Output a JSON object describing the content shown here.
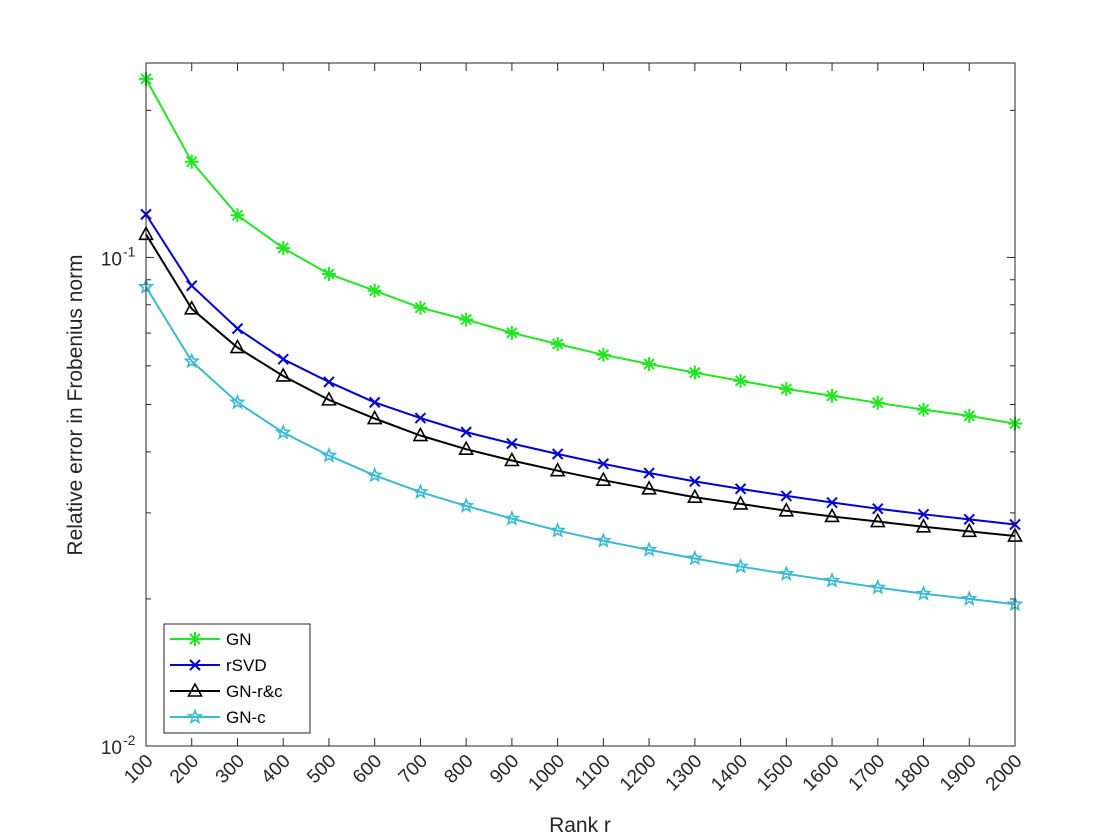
{
  "chart_data": {
    "type": "line",
    "title": "",
    "xlabel": "Rank r",
    "ylabel": "Relative error in Frobenius norm",
    "yscale": "log",
    "ylim": [
      0.01,
      0.25
    ],
    "xlim": [
      100,
      2000
    ],
    "x": [
      100,
      200,
      300,
      400,
      500,
      600,
      700,
      800,
      900,
      1000,
      1100,
      1200,
      1300,
      1400,
      1500,
      1600,
      1700,
      1800,
      1900,
      2000
    ],
    "xtick_labels": [
      "100",
      "200",
      "300",
      "400",
      "500",
      "600",
      "700",
      "800",
      "900",
      "1000",
      "1100",
      "1200",
      "1300",
      "1400",
      "1500",
      "1600",
      "1700",
      "1800",
      "1900",
      "2000"
    ],
    "ytick_labels": [
      {
        "value": 0.1,
        "base": "10",
        "exp": "-1"
      },
      {
        "value": 0.01,
        "base": "10",
        "exp": "-2"
      }
    ],
    "grid": false,
    "box": true,
    "legend_position": "bottom-left",
    "series": [
      {
        "name": "GN",
        "color": "#22e622",
        "marker": "asterisk",
        "values": [
          0.232,
          0.157,
          0.122,
          0.1045,
          0.0925,
          0.0855,
          0.0789,
          0.0746,
          0.0701,
          0.0665,
          0.0632,
          0.0605,
          0.0581,
          0.0559,
          0.0538,
          0.0521,
          0.0504,
          0.0488,
          0.0474,
          0.0457
        ]
      },
      {
        "name": "rSVD",
        "color": "#0000d4",
        "marker": "x",
        "values": [
          0.1225,
          0.0875,
          0.0715,
          0.0619,
          0.0556,
          0.0505,
          0.0469,
          0.0439,
          0.0416,
          0.0396,
          0.0378,
          0.0362,
          0.0348,
          0.0336,
          0.0325,
          0.0315,
          0.0306,
          0.0298,
          0.0291,
          0.0284
        ]
      },
      {
        "name": "GN-r&c",
        "color": "#000000",
        "marker": "triangle",
        "values": [
          0.1115,
          0.0785,
          0.0654,
          0.0572,
          0.0511,
          0.0468,
          0.0432,
          0.0405,
          0.0384,
          0.0366,
          0.035,
          0.0336,
          0.0323,
          0.0313,
          0.0303,
          0.0295,
          0.0288,
          0.0281,
          0.0275,
          0.0269
        ]
      },
      {
        "name": "GN-c",
        "color": "#3ab9d3",
        "marker": "star",
        "values": [
          0.087,
          0.0613,
          0.0505,
          0.0438,
          0.0393,
          0.0358,
          0.0331,
          0.031,
          0.0292,
          0.0276,
          0.0263,
          0.0252,
          0.0242,
          0.0233,
          0.0225,
          0.0218,
          0.0211,
          0.0205,
          0.02,
          0.0195
        ]
      }
    ]
  }
}
